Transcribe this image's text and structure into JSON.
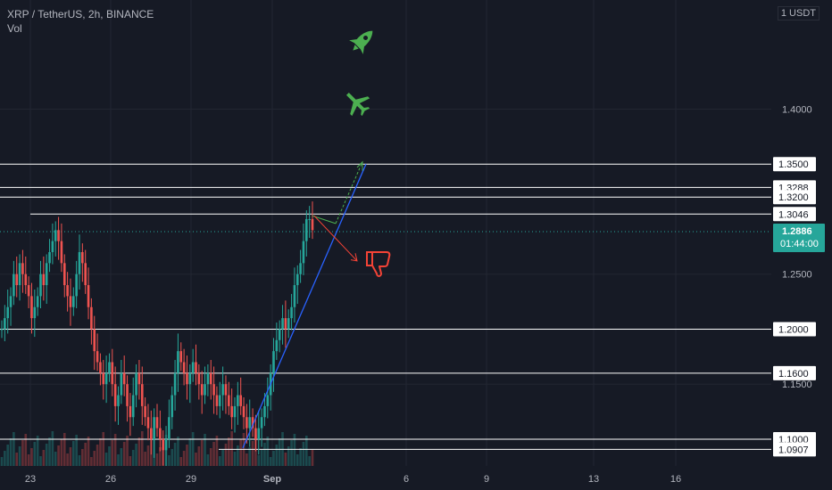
{
  "header": {
    "symbol": "XRP / TetherUS, 2h, BINANCE",
    "vol": "Vol",
    "unit": "1 USDT"
  },
  "chart_data": {
    "type": "candlestick",
    "title": "XRP / TetherUS, 2h, BINANCE",
    "ylim": [
      1.087,
      1.487
    ],
    "y_ticks": [
      "1.4000",
      "1.2500",
      "1.1500"
    ],
    "x_ticks": [
      "23",
      "26",
      "29",
      "Sep",
      "6",
      "9",
      "13",
      "16"
    ],
    "horizontal_levels": [
      {
        "value": 1.35,
        "label": "1.3500"
      },
      {
        "value": 1.3288,
        "label": "1.3288"
      },
      {
        "value": 1.32,
        "label": "1.3200"
      },
      {
        "value": 1.3046,
        "label": "1.3046"
      },
      {
        "value": 1.2,
        "label": "1.2000"
      },
      {
        "value": 1.16,
        "label": "1.1600"
      },
      {
        "value": 1.1,
        "label": "1.1000"
      },
      {
        "value": 1.0907,
        "label": "1.0907"
      }
    ],
    "current_price": {
      "value": 1.2886,
      "label": "1.2886",
      "countdown": "01:44:00"
    },
    "candle_closes": [
      1.2,
      1.21,
      1.22,
      1.23,
      1.25,
      1.24,
      1.26,
      1.25,
      1.24,
      1.23,
      1.21,
      1.22,
      1.23,
      1.25,
      1.24,
      1.26,
      1.27,
      1.28,
      1.29,
      1.28,
      1.26,
      1.24,
      1.23,
      1.22,
      1.23,
      1.25,
      1.27,
      1.26,
      1.24,
      1.22,
      1.2,
      1.18,
      1.17,
      1.16,
      1.15,
      1.16,
      1.17,
      1.15,
      1.13,
      1.14,
      1.16,
      1.15,
      1.13,
      1.12,
      1.14,
      1.16,
      1.15,
      1.13,
      1.12,
      1.11,
      1.1,
      1.12,
      1.11,
      1.1,
      1.09,
      1.1,
      1.12,
      1.14,
      1.16,
      1.18,
      1.17,
      1.16,
      1.15,
      1.16,
      1.17,
      1.16,
      1.15,
      1.14,
      1.15,
      1.16,
      1.15,
      1.14,
      1.13,
      1.14,
      1.15,
      1.14,
      1.13,
      1.12,
      1.13,
      1.14,
      1.13,
      1.12,
      1.11,
      1.12,
      1.11,
      1.1,
      1.11,
      1.12,
      1.13,
      1.14,
      1.16,
      1.18,
      1.19,
      1.2,
      1.21,
      1.2,
      1.21,
      1.22,
      1.24,
      1.25,
      1.26,
      1.28,
      1.3,
      1.3,
      1.29
    ]
  },
  "colors": {
    "background": "#161a25",
    "grid": "#222632",
    "up": "#26a69a",
    "down": "#ef5350",
    "level": "#ffffff",
    "trendline": "#2962ff",
    "arrow_up": "#4caf50",
    "arrow_down": "#f44336",
    "price_tag": "#26a69a"
  },
  "icons": [
    "rocket-icon",
    "airplane-icon",
    "thumbs-down-icon"
  ]
}
